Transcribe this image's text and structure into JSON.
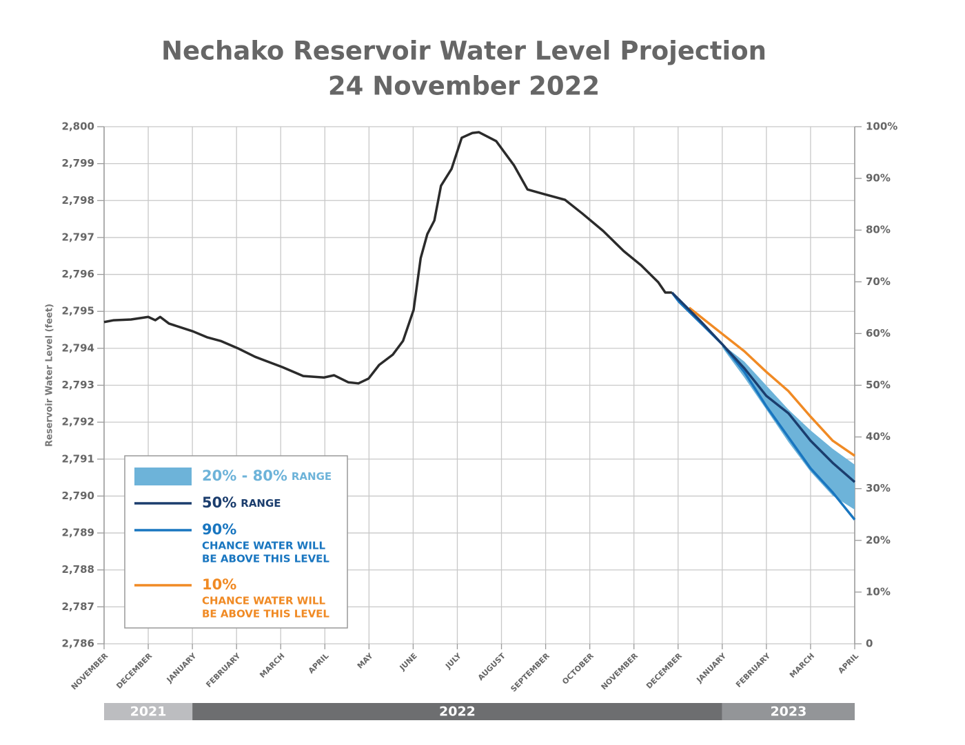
{
  "chart_data": {
    "type": "line",
    "title": "Nechako Reservoir Water Level Projection",
    "subtitle": "24 November 2022",
    "ylabel": "Reservoir Water Level (feet)",
    "grid": true,
    "legend": "lower left",
    "xlim": [
      0,
      17
    ],
    "xticks": [
      {
        "value": 0,
        "label": "NOVEMBER"
      },
      {
        "value": 1,
        "label": "DECEMBER"
      },
      {
        "value": 2,
        "label": "JANUARY"
      },
      {
        "value": 3,
        "label": "FEBRUARY"
      },
      {
        "value": 4,
        "label": "MARCH"
      },
      {
        "value": 5,
        "label": "APRIL"
      },
      {
        "value": 6,
        "label": "MAY"
      },
      {
        "value": 7,
        "label": "JUNE"
      },
      {
        "value": 8,
        "label": "JULY"
      },
      {
        "value": 9,
        "label": "AUGUST"
      },
      {
        "value": 10,
        "label": "SEPTEMBER"
      },
      {
        "value": 11,
        "label": "OCTOBER"
      },
      {
        "value": 12,
        "label": "NOVEMBER"
      },
      {
        "value": 13,
        "label": "DECEMBER"
      },
      {
        "value": 14,
        "label": "JANUARY"
      },
      {
        "value": 15,
        "label": "FEBRUARY"
      },
      {
        "value": 16,
        "label": "MARCH"
      },
      {
        "value": 17,
        "label": "APRIL"
      }
    ],
    "year_bands": [
      {
        "label": "2021",
        "start": 0,
        "end": 2,
        "color": "#bcbdc0"
      },
      {
        "label": "2022",
        "start": 2,
        "end": 14,
        "color": "#6d6e70"
      },
      {
        "label": "2023",
        "start": 14,
        "end": 17,
        "color": "#939598"
      }
    ],
    "ylim": [
      2786,
      2800
    ],
    "yticks": [
      {
        "value": 2786,
        "label": "2,786"
      },
      {
        "value": 2787,
        "label": "2,787"
      },
      {
        "value": 2788,
        "label": "2,788"
      },
      {
        "value": 2789,
        "label": "2,789"
      },
      {
        "value": 2790,
        "label": "2,790"
      },
      {
        "value": 2791,
        "label": "2,791"
      },
      {
        "value": 2792,
        "label": "2,792"
      },
      {
        "value": 2793,
        "label": "2,793"
      },
      {
        "value": 2794,
        "label": "2,794"
      },
      {
        "value": 2795,
        "label": "2,795"
      },
      {
        "value": 2796,
        "label": "2,796"
      },
      {
        "value": 2797,
        "label": "2,797"
      },
      {
        "value": 2798,
        "label": "2,798"
      },
      {
        "value": 2799,
        "label": "2,799"
      },
      {
        "value": 2800,
        "label": "2,800"
      }
    ],
    "y2lim": [
      0,
      100
    ],
    "y2ticks": [
      0,
      {
        "value": 10,
        "label": "10%"
      },
      {
        "value": 20,
        "label": "20%"
      },
      {
        "value": 30,
        "label": "30%"
      },
      {
        "value": 40,
        "label": "40%"
      },
      {
        "value": 50,
        "label": "50%"
      },
      {
        "value": 60,
        "label": "60%"
      },
      {
        "value": 70,
        "label": "70%"
      },
      {
        "value": 80,
        "label": "80%"
      },
      {
        "value": 90,
        "label": "90%"
      },
      {
        "value": 100,
        "label": "100%"
      }
    ],
    "series": [
      {
        "color": "#2b2b2b",
        "x": [
          0,
          0.22,
          0.61,
          1.0,
          1.16,
          1.27,
          1.47,
          2.01,
          2.33,
          2.64,
          3.03,
          3.42,
          4.04,
          4.51,
          4.98,
          5.21,
          5.53,
          5.76,
          5.99,
          6.23,
          6.54,
          6.77,
          7.01,
          7.17,
          7.32,
          7.48,
          7.63,
          7.87,
          8.1,
          8.34,
          8.49,
          8.88,
          9.28,
          9.59,
          9.98,
          10.44,
          10.83,
          11.3,
          11.77,
          12.16,
          12.55,
          12.71,
          12.86
        ],
        "values": [
          2794.71,
          2794.76,
          2794.78,
          2794.85,
          2794.76,
          2794.85,
          2794.67,
          2794.46,
          2794.3,
          2794.2,
          2794.0,
          2793.77,
          2793.49,
          2793.25,
          2793.21,
          2793.27,
          2793.08,
          2793.05,
          2793.18,
          2793.55,
          2793.83,
          2794.2,
          2795.04,
          2796.44,
          2797.09,
          2797.46,
          2798.4,
          2798.86,
          2799.7,
          2799.83,
          2799.85,
          2799.61,
          2798.96,
          2798.3,
          2798.17,
          2798.02,
          2797.65,
          2797.18,
          2796.63,
          2796.25,
          2795.79,
          2795.51,
          2795.51
        ]
      },
      {
        "name": "20% - 80%",
        "note": [
          "RANGE"
        ],
        "type": "band",
        "color": "#6db3d9",
        "x": [
          14,
          14.5,
          15,
          15.5,
          16,
          16.5,
          17
        ],
        "low": [
          2794.02,
          2793.21,
          2792.34,
          2791.46,
          2790.66,
          2790.01,
          2789.63
        ],
        "high": [
          2794.11,
          2793.64,
          2792.99,
          2792.34,
          2791.78,
          2791.28,
          2790.85
        ]
      },
      {
        "name": "50%",
        "note": [
          "RANGE"
        ],
        "color": "#1b3d6d",
        "x": [
          12.86,
          13.49,
          14,
          14.5,
          15,
          15.5,
          16,
          16.5,
          17
        ],
        "values": [
          2795.51,
          2794.76,
          2794.11,
          2793.46,
          2792.71,
          2792.24,
          2791.5,
          2790.9,
          2790.38
        ]
      },
      {
        "name": "90%",
        "note": [
          "CHANCE WATER WILL",
          "BE ABOVE THIS LEVEL"
        ],
        "color": "#1976c0",
        "x": [
          12.86,
          13.02,
          13.49,
          14,
          14.5,
          15,
          15.5,
          16,
          16.5,
          17
        ],
        "values": [
          2795.51,
          2795.26,
          2794.71,
          2794.11,
          2793.36,
          2792.43,
          2791.59,
          2790.75,
          2790.1,
          2789.36
        ]
      },
      {
        "name": "10%",
        "note": [
          "CHANCE WATER WILL",
          "BE ABOVE THIS LEVEL"
        ],
        "color": "#f08a24",
        "x": [
          13.25,
          14,
          14.5,
          15,
          15.5,
          16,
          16.5,
          17
        ],
        "values": [
          2795.1,
          2794.39,
          2793.92,
          2793.36,
          2792.84,
          2792.15,
          2791.5,
          2791.09
        ]
      }
    ]
  }
}
